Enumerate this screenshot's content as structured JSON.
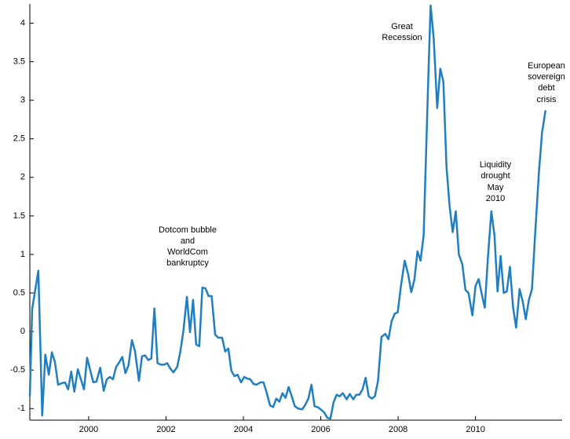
{
  "chart_data": {
    "type": "line",
    "annotations": [
      [
        "Dotcom bubble",
        "and",
        "WorldCom",
        "bankruptcy"
      ],
      [
        "Great",
        "Recession"
      ],
      [
        "Liquidity",
        "drought",
        "May",
        "2010"
      ],
      [
        "European",
        "sovereign",
        "debt",
        "crisis"
      ]
    ],
    "x": [
      1998.48,
      1998.54,
      1998.62,
      1998.7,
      1998.8,
      1998.88,
      1998.97,
      1999.05,
      1999.13,
      1999.21,
      1999.31,
      1999.39,
      1999.47,
      1999.55,
      1999.63,
      1999.72,
      1999.8,
      1999.88,
      1999.96,
      2000.04,
      2000.12,
      2000.2,
      2000.3,
      2000.39,
      2000.47,
      2000.55,
      2000.63,
      2000.71,
      2000.79,
      2000.87,
      2000.95,
      2001.03,
      2001.12,
      2001.2,
      2001.3,
      2001.38,
      2001.46,
      2001.54,
      2001.62,
      2001.7,
      2001.78,
      2001.87,
      2001.95,
      2002.03,
      2002.11,
      2002.19,
      2002.29,
      2002.37,
      2002.45,
      2002.54,
      2002.62,
      2002.7,
      2002.78,
      2002.86,
      2002.94,
      2003.02,
      2003.1,
      2003.18,
      2003.27,
      2003.35,
      2003.45,
      2003.53,
      2003.61,
      2003.69,
      2003.77,
      2003.85,
      2003.94,
      2004.02,
      2004.1,
      2004.18,
      2004.26,
      2004.34,
      2004.44,
      2004.52,
      2004.6,
      2004.69,
      2004.77,
      2004.85,
      2004.93,
      2005.01,
      2005.09,
      2005.17,
      2005.25,
      2005.33,
      2005.42,
      2005.52,
      2005.6,
      2005.68,
      2005.76,
      2005.84,
      2005.92,
      2006.0,
      2006.09,
      2006.17,
      2006.25,
      2006.33,
      2006.41,
      2006.49,
      2006.57,
      2006.67,
      2006.75,
      2006.84,
      2006.92,
      2007.0,
      2007.08,
      2007.16,
      2007.24,
      2007.32,
      2007.4,
      2007.48,
      2007.57,
      2007.67,
      2007.75,
      2007.83,
      2007.91,
      2007.99,
      2008.07,
      2008.17,
      2008.26,
      2008.34,
      2008.42,
      2008.5,
      2008.58,
      2008.66,
      2008.72,
      2008.78,
      2008.84,
      2008.92,
      2009.01,
      2009.09,
      2009.17,
      2009.25,
      2009.33,
      2009.41,
      2009.49,
      2009.57,
      2009.66,
      2009.74,
      2009.82,
      2009.92,
      2010.0,
      2010.08,
      2010.16,
      2010.24,
      2010.32,
      2010.41,
      2010.49,
      2010.57,
      2010.65,
      2010.73,
      2010.81,
      2010.89,
      2010.97,
      2011.05,
      2011.14,
      2011.22,
      2011.3,
      2011.38,
      2011.46,
      2011.54,
      2011.64,
      2011.72,
      2011.81
    ],
    "series": [
      {
        "color": "#1f7fc1",
        "values": [
          -0.84,
          0.29,
          0.54,
          0.79,
          -1.09,
          -0.3,
          -0.56,
          -0.27,
          -0.4,
          -0.69,
          -0.67,
          -0.66,
          -0.75,
          -0.52,
          -0.78,
          -0.49,
          -0.62,
          -0.75,
          -0.34,
          -0.5,
          -0.66,
          -0.65,
          -0.47,
          -0.77,
          -0.62,
          -0.59,
          -0.62,
          -0.46,
          -0.4,
          -0.33,
          -0.54,
          -0.44,
          -0.11,
          -0.26,
          -0.64,
          -0.32,
          -0.31,
          -0.37,
          -0.35,
          0.3,
          -0.41,
          -0.43,
          -0.43,
          -0.41,
          -0.48,
          -0.53,
          -0.46,
          -0.26,
          0.01,
          0.45,
          -0.01,
          0.41,
          -0.17,
          -0.19,
          0.57,
          0.56,
          0.46,
          0.46,
          -0.04,
          -0.08,
          -0.08,
          -0.26,
          -0.22,
          -0.51,
          -0.58,
          -0.56,
          -0.66,
          -0.59,
          -0.61,
          -0.62,
          -0.68,
          -0.69,
          -0.66,
          -0.66,
          -0.79,
          -0.96,
          -0.98,
          -0.87,
          -0.91,
          -0.8,
          -0.86,
          -0.72,
          -0.84,
          -0.97,
          -1.0,
          -1.01,
          -0.95,
          -0.87,
          -0.69,
          -0.97,
          -0.98,
          -1.01,
          -1.05,
          -1.12,
          -1.13,
          -0.92,
          -0.82,
          -0.84,
          -0.8,
          -0.88,
          -0.81,
          -0.88,
          -0.82,
          -0.82,
          -0.75,
          -0.6,
          -0.84,
          -0.87,
          -0.84,
          -0.64,
          -0.07,
          -0.03,
          -0.1,
          0.13,
          0.23,
          0.25,
          0.58,
          0.92,
          0.74,
          0.51,
          0.67,
          1.04,
          0.92,
          1.25,
          2.27,
          3.29,
          4.23,
          3.8,
          2.9,
          3.41,
          3.24,
          2.14,
          1.63,
          1.29,
          1.56,
          1.0,
          0.87,
          0.54,
          0.5,
          0.21,
          0.59,
          0.68,
          0.49,
          0.31,
          0.95,
          1.56,
          1.25,
          0.52,
          0.98,
          0.5,
          0.52,
          0.84,
          0.32,
          0.05,
          0.55,
          0.39,
          0.16,
          0.41,
          0.55,
          1.25,
          2.07,
          2.58,
          2.87
        ]
      }
    ],
    "xlim": [
      1998.48,
      2012.24
    ],
    "xticks": [
      2000,
      2002,
      2004,
      2006,
      2008,
      2010
    ],
    "ylim": [
      -1.15,
      4.25
    ],
    "yticks": [
      -1,
      -0.5,
      0,
      0.5,
      1,
      1.5,
      2,
      2.5,
      3,
      3.5,
      4
    ]
  }
}
